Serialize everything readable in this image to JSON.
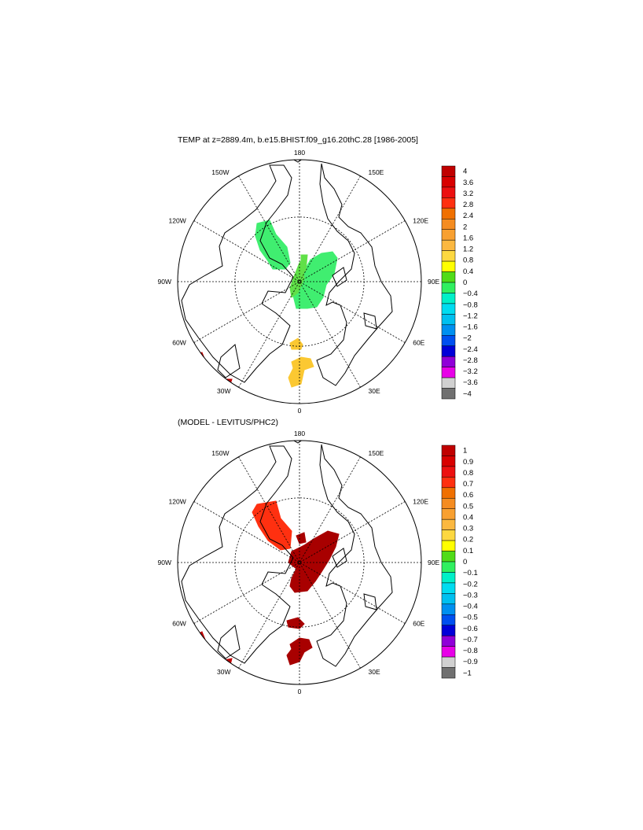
{
  "panel1": {
    "title": "TEMP at z=2889.4m, b.e15.BHIST.f09_g16.20thC.28 [1986-2005]",
    "colorbar_labels": [
      "4",
      "3.6",
      "3.2",
      "2.8",
      "2.4",
      "2",
      "1.6",
      "1.2",
      "0.8",
      "0.4",
      "0",
      "−0.4",
      "−0.8",
      "−1.2",
      "−1.6",
      "−2",
      "−2.4",
      "−2.8",
      "−3.2",
      "−3.6",
      "−4"
    ]
  },
  "panel2": {
    "title": "(MODEL - LEVITUS/PHC2)",
    "colorbar_labels": [
      "1",
      "0.9",
      "0.8",
      "0.7",
      "0.6",
      "0.5",
      "0.4",
      "0.3",
      "0.2",
      "0.1",
      "0",
      "−0.1",
      "−0.2",
      "−0.3",
      "−0.4",
      "−0.5",
      "−0.6",
      "−0.7",
      "−0.8",
      "−0.9",
      "−1"
    ]
  },
  "longitude_labels": {
    "top": "180",
    "bottom": "0",
    "left": "90W",
    "right": "90E",
    "ul1": "150W",
    "ul2": "120W",
    "ll1": "60W",
    "ll2": "30W",
    "ur1": "150E",
    "ur2": "120E",
    "lr1": "60E",
    "lr2": "30E"
  },
  "colorbar_colors": [
    "#c00000",
    "#d80000",
    "#ec1010",
    "#ff3010",
    "#f07000",
    "#f58c20",
    "#f8a030",
    "#fbb840",
    "#fdd840",
    "#ffff00",
    "#50dc18",
    "#30f060",
    "#00f0c8",
    "#00dcf0",
    "#00c0f0",
    "#0090f0",
    "#0050f0",
    "#0000d8",
    "#9000d8",
    "#e800e8",
    "#d0d0d0",
    "#707070"
  ],
  "colors": {
    "panel1_green": "#40ee70",
    "panel1_green2": "#60e048",
    "panel1_yellow": "#fbc832",
    "panel2_orange": "#ff3010",
    "panel2_darkred": "#a80000",
    "red": "#c00000"
  }
}
